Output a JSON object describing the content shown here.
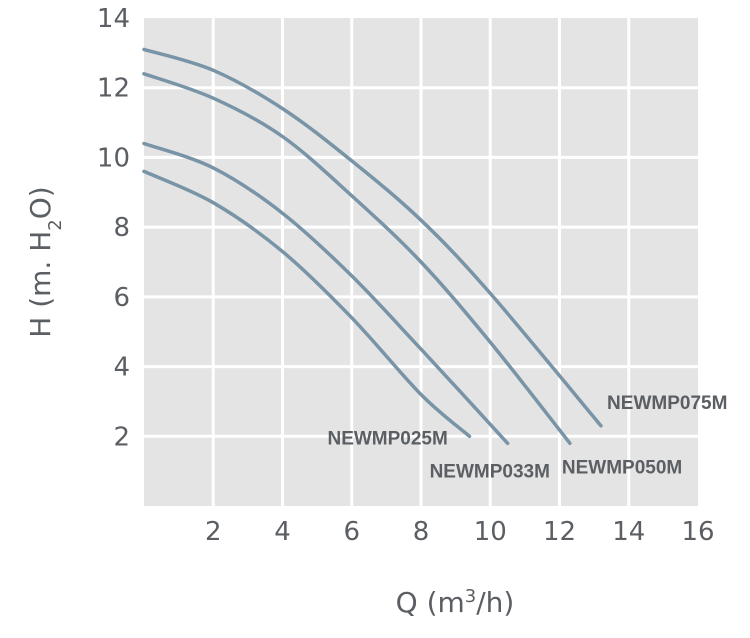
{
  "chart_data": {
    "type": "line",
    "title": "",
    "xlabel_main": "Q (m",
    "xlabel_sup": "3",
    "xlabel_tail": "/h)",
    "ylabel_main": "H (m. H",
    "ylabel_sub": "2",
    "ylabel_tail": "O)",
    "xlim": [
      0,
      16
    ],
    "ylim": [
      0,
      14
    ],
    "x_ticks": [
      "2",
      "4",
      "6",
      "8",
      "10",
      "12",
      "14",
      "16"
    ],
    "y_ticks": [
      "2",
      "4",
      "6",
      "8",
      "10",
      "12",
      "14"
    ],
    "grid": true,
    "colors": {
      "plot_bg": "#e4e4e4",
      "grid": "#ffffff",
      "line": "#7894a6",
      "text": "#5b5f63"
    },
    "series": [
      {
        "name": "NEWMP025M",
        "x": [
          0,
          2,
          4,
          6,
          8,
          9.4
        ],
        "y": [
          9.6,
          8.7,
          7.3,
          5.4,
          3.2,
          2.0
        ]
      },
      {
        "name": "NEWMP033M",
        "x": [
          0,
          2,
          4,
          6,
          8,
          10.5
        ],
        "y": [
          10.4,
          9.7,
          8.4,
          6.6,
          4.5,
          1.8
        ]
      },
      {
        "name": "NEWMP050M",
        "x": [
          0,
          2,
          4,
          6,
          8,
          10,
          12.3
        ],
        "y": [
          12.4,
          11.7,
          10.6,
          8.9,
          7.0,
          4.7,
          1.8
        ]
      },
      {
        "name": "NEWMP075M",
        "x": [
          0,
          2,
          4,
          6,
          8,
          10,
          13.2
        ],
        "y": [
          13.1,
          12.5,
          11.4,
          9.9,
          8.2,
          6.1,
          2.3
        ]
      }
    ]
  }
}
